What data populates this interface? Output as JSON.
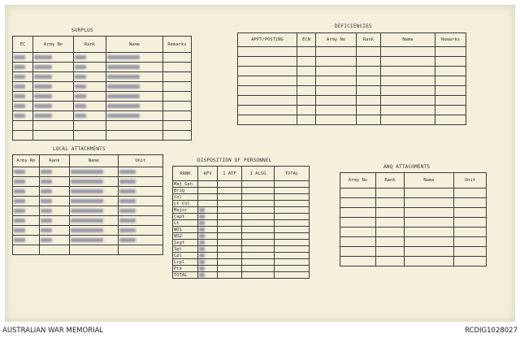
{
  "surplus": {
    "title": "SURPLUS",
    "headers": [
      "EC",
      "Army No",
      "Rank",
      "Name",
      "Remarks"
    ],
    "rows": 9,
    "filled_rows": 7
  },
  "deficiencies": {
    "title": "DEFICIENCIES",
    "headers": [
      "APPT/POSTING",
      "ECN",
      "Army No",
      "Rank",
      "Name",
      "Remarks"
    ],
    "rows": 8
  },
  "local_attachments": {
    "title": "LOCAL ATTACHMENTS",
    "headers": [
      "Army No",
      "Rank",
      "Name",
      "Unit"
    ],
    "rows": 9,
    "filled_rows": 8
  },
  "disposition": {
    "title": "DISPOSITION OF PERSONNEL",
    "headers": [
      "RANK",
      "AFV",
      "1 ATF",
      "1 ALSG",
      "TOTAL"
    ],
    "ranks": [
      "Maj Gen",
      "Brig",
      "Col",
      "Lt Col",
      "Major",
      "Capt",
      "Lt",
      "WO1",
      "WO2",
      "Ssgt",
      "Sgt",
      "Cpl",
      "Lcpl",
      "Pte",
      "TOTAL"
    ]
  },
  "anq_attachments": {
    "title": "ANQ ATTACHMENTS",
    "headers": [
      "Army No",
      "Rank",
      "Name",
      "Unit"
    ],
    "rows": 8
  },
  "footer": {
    "left": "AUSTRALIAN WAR MEMORIAL",
    "right": "RCDIG1028027"
  },
  "colors": {
    "paper": "#f4f0dc",
    "ink": "#333333",
    "redaction": "#8a8aa0"
  }
}
